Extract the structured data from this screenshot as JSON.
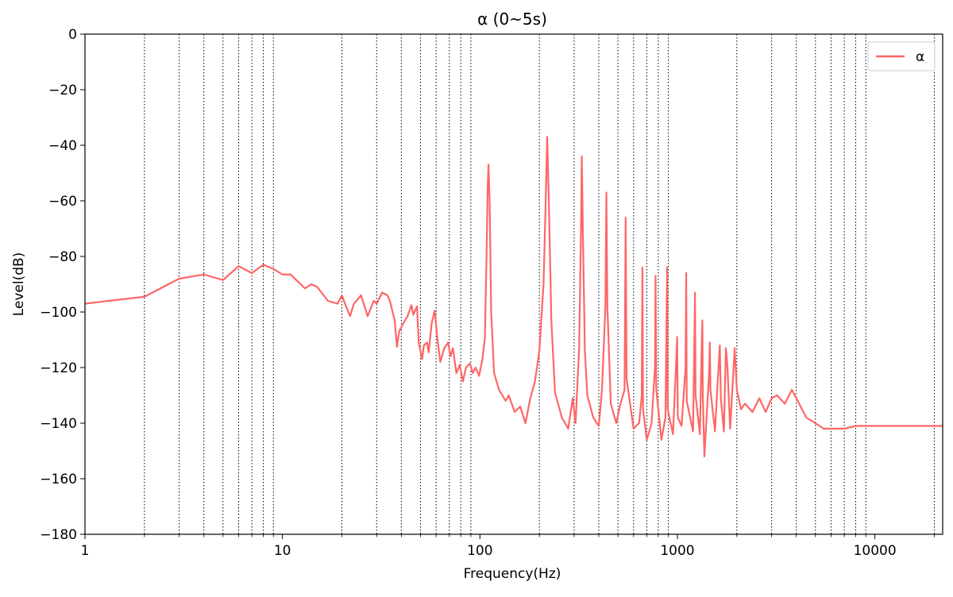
{
  "chart_data": {
    "type": "line",
    "title": "α (0~5s)",
    "xlabel": "Frequency(Hz)",
    "ylabel": "Level(dB)",
    "x_scale": "log",
    "xlim": [
      1,
      22050
    ],
    "ylim": [
      -180,
      0
    ],
    "x_major_ticks": [
      1,
      10,
      100,
      1000,
      10000
    ],
    "x_tick_labels": [
      "1",
      "10",
      "100",
      "1000",
      "10000"
    ],
    "y_ticks": [
      0,
      -20,
      -40,
      -60,
      -80,
      -100,
      -120,
      -140,
      -160,
      -180
    ],
    "y_tick_labels": [
      "0",
      "−20",
      "−40",
      "−60",
      "−80",
      "−100",
      "−120",
      "−140",
      "−160",
      "−180"
    ],
    "vertical_gridlines": [
      2,
      3,
      4,
      5,
      6,
      7,
      8,
      9,
      20,
      30,
      40,
      50,
      60,
      70,
      80,
      90,
      200,
      300,
      400,
      500,
      600,
      700,
      800,
      900,
      2000,
      3000,
      4000,
      5000,
      6000,
      7000,
      8000,
      9000,
      20000
    ],
    "grid_style": "dotted vertical",
    "legend": {
      "position": "top-right",
      "entries": [
        "α"
      ]
    },
    "series": [
      {
        "name": "α",
        "color": "#ff6666",
        "points": [
          [
            1,
            -97
          ],
          [
            2,
            -94.5
          ],
          [
            3,
            -88
          ],
          [
            4,
            -86.5
          ],
          [
            5,
            -88.5
          ],
          [
            6,
            -83.5
          ],
          [
            7,
            -86
          ],
          [
            8,
            -83
          ],
          [
            9,
            -84.5
          ],
          [
            10,
            -86.5
          ],
          [
            11,
            -86.5
          ],
          [
            13,
            -91.5
          ],
          [
            14,
            -90
          ],
          [
            15,
            -91
          ],
          [
            17,
            -96
          ],
          [
            19,
            -97
          ],
          [
            20,
            -94
          ],
          [
            21,
            -98
          ],
          [
            22,
            -101.5
          ],
          [
            23,
            -97
          ],
          [
            25,
            -94
          ],
          [
            27,
            -101.5
          ],
          [
            29,
            -96
          ],
          [
            30,
            -97
          ],
          [
            32,
            -93
          ],
          [
            34,
            -94
          ],
          [
            35,
            -96
          ],
          [
            37,
            -103
          ],
          [
            38,
            -112.5
          ],
          [
            39,
            -107
          ],
          [
            41,
            -104
          ],
          [
            43,
            -101.5
          ],
          [
            45,
            -97.5
          ],
          [
            46,
            -101
          ],
          [
            48,
            -98
          ],
          [
            49,
            -111
          ],
          [
            51,
            -117
          ],
          [
            52,
            -112
          ],
          [
            54,
            -111
          ],
          [
            55,
            -114.5
          ],
          [
            57,
            -104
          ],
          [
            59,
            -99.5
          ],
          [
            61,
            -110
          ],
          [
            63,
            -118
          ],
          [
            66,
            -113
          ],
          [
            69,
            -111
          ],
          [
            71,
            -116
          ],
          [
            73,
            -113
          ],
          [
            76,
            -122
          ],
          [
            79,
            -119
          ],
          [
            82,
            -125
          ],
          [
            85,
            -120
          ],
          [
            89,
            -118.5
          ],
          [
            92,
            -122
          ],
          [
            95,
            -120
          ],
          [
            99,
            -123
          ],
          [
            103,
            -117
          ],
          [
            106,
            -109
          ],
          [
            108,
            -80
          ],
          [
            109.5,
            -55
          ],
          [
            110.5,
            -47
          ],
          [
            112,
            -60
          ],
          [
            114,
            -100
          ],
          [
            118,
            -122
          ],
          [
            125,
            -128
          ],
          [
            135,
            -132
          ],
          [
            140,
            -130
          ],
          [
            150,
            -136
          ],
          [
            160,
            -134
          ],
          [
            170,
            -140
          ],
          [
            180,
            -131
          ],
          [
            190,
            -125
          ],
          [
            200,
            -114
          ],
          [
            210,
            -90
          ],
          [
            215,
            -62
          ],
          [
            219,
            -37
          ],
          [
            223,
            -58
          ],
          [
            230,
            -103
          ],
          [
            240,
            -129
          ],
          [
            260,
            -138
          ],
          [
            280,
            -142
          ],
          [
            295,
            -131
          ],
          [
            305,
            -140
          ],
          [
            318,
            -113
          ],
          [
            325,
            -70
          ],
          [
            328,
            -44
          ],
          [
            332,
            -70
          ],
          [
            340,
            -114
          ],
          [
            350,
            -130
          ],
          [
            375,
            -138
          ],
          [
            400,
            -141
          ],
          [
            415,
            -128
          ],
          [
            432,
            -98
          ],
          [
            437,
            -57
          ],
          [
            442,
            -98
          ],
          [
            460,
            -133
          ],
          [
            490,
            -140
          ],
          [
            515,
            -133
          ],
          [
            540,
            -128
          ],
          [
            547,
            -66
          ],
          [
            553,
            -124
          ],
          [
            600,
            -142
          ],
          [
            640,
            -140
          ],
          [
            660,
            -130
          ],
          [
            665,
            -84
          ],
          [
            670,
            -135
          ],
          [
            700,
            -146
          ],
          [
            740,
            -140
          ],
          [
            770,
            -120
          ],
          [
            775,
            -87
          ],
          [
            782,
            -128
          ],
          [
            830,
            -146
          ],
          [
            870,
            -138
          ],
          [
            880,
            -108
          ],
          [
            887,
            -84
          ],
          [
            893,
            -135
          ],
          [
            950,
            -144
          ],
          [
            990,
            -115
          ],
          [
            997,
            -109
          ],
          [
            1005,
            -138
          ],
          [
            1050,
            -141
          ],
          [
            1100,
            -120
          ],
          [
            1108,
            -86
          ],
          [
            1115,
            -132
          ],
          [
            1200,
            -143
          ],
          [
            1220,
            -108
          ],
          [
            1228,
            -93
          ],
          [
            1236,
            -130
          ],
          [
            1300,
            -144
          ],
          [
            1330,
            -110
          ],
          [
            1338,
            -103
          ],
          [
            1345,
            -130
          ],
          [
            1370,
            -152
          ],
          [
            1400,
            -140
          ],
          [
            1450,
            -121
          ],
          [
            1460,
            -111
          ],
          [
            1470,
            -128
          ],
          [
            1550,
            -143
          ],
          [
            1600,
            -125
          ],
          [
            1640,
            -112
          ],
          [
            1660,
            -131
          ],
          [
            1720,
            -143
          ],
          [
            1760,
            -113
          ],
          [
            1790,
            -119
          ],
          [
            1850,
            -142
          ],
          [
            1950,
            -113
          ],
          [
            2000,
            -128
          ],
          [
            2100,
            -135
          ],
          [
            2200,
            -133
          ],
          [
            2400,
            -136
          ],
          [
            2600,
            -131
          ],
          [
            2800,
            -136
          ],
          [
            3000,
            -131
          ],
          [
            3200,
            -130
          ],
          [
            3500,
            -133
          ],
          [
            3800,
            -128
          ],
          [
            4000,
            -131
          ],
          [
            4500,
            -138
          ],
          [
            5000,
            -140
          ],
          [
            5500,
            -142
          ],
          [
            6000,
            -142
          ],
          [
            7000,
            -142
          ],
          [
            8000,
            -141
          ],
          [
            10000,
            -141
          ],
          [
            12000,
            -141
          ],
          [
            15000,
            -141
          ],
          [
            18000,
            -141
          ],
          [
            20000,
            -141
          ],
          [
            22050,
            -141
          ]
        ]
      }
    ]
  }
}
